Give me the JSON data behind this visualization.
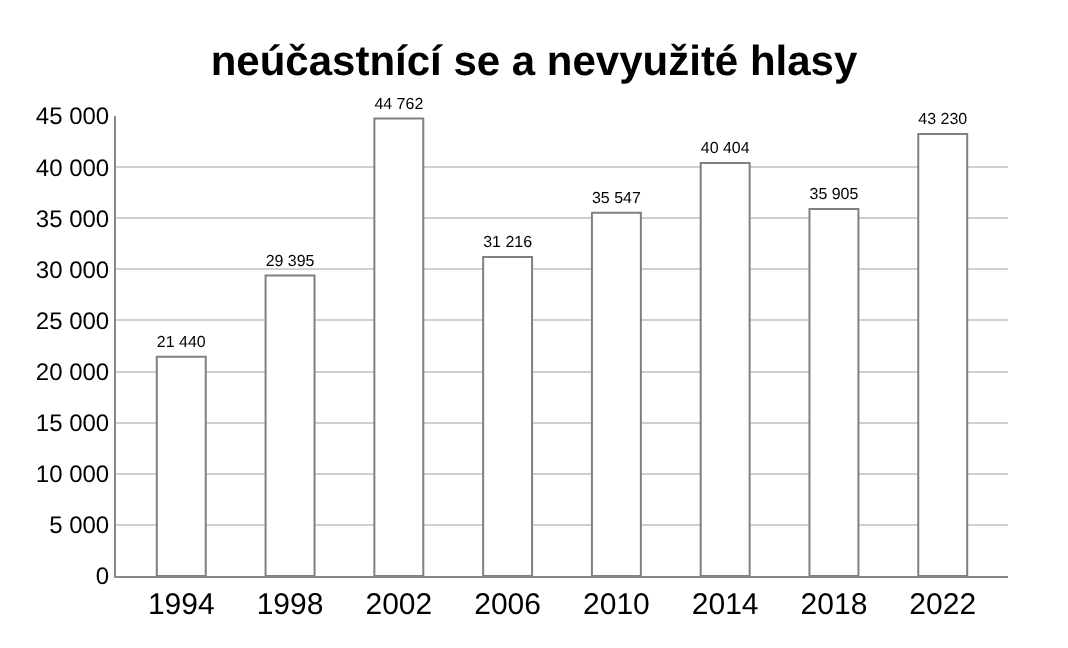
{
  "chart_data": {
    "type": "bar",
    "title": "neúčastnící se a nevyužité hlasy",
    "categories": [
      "1994",
      "1998",
      "2002",
      "2006",
      "2010",
      "2014",
      "2018",
      "2022"
    ],
    "values": [
      21440,
      29395,
      44762,
      31216,
      35547,
      40404,
      35905,
      43230
    ],
    "value_labels": [
      "21 440",
      "29 395",
      "44 762",
      "31 216",
      "35 547",
      "40 404",
      "35 905",
      "43 230"
    ],
    "color": "#ffffff",
    "ylim": [
      0,
      45000
    ],
    "yticks": [
      {
        "value": 0,
        "label": "0"
      },
      {
        "value": 5000,
        "label": "5 000"
      },
      {
        "value": 10000,
        "label": "10 000"
      },
      {
        "value": 15000,
        "label": "15 000"
      },
      {
        "value": 20000,
        "label": "20 000"
      },
      {
        "value": 25000,
        "label": "25 000"
      },
      {
        "value": 30000,
        "label": "30 000"
      },
      {
        "value": 35000,
        "label": "35 000"
      },
      {
        "value": 40000,
        "label": "40 000"
      },
      {
        "value": 45000,
        "label": "45 000"
      }
    ],
    "grid": "y"
  }
}
